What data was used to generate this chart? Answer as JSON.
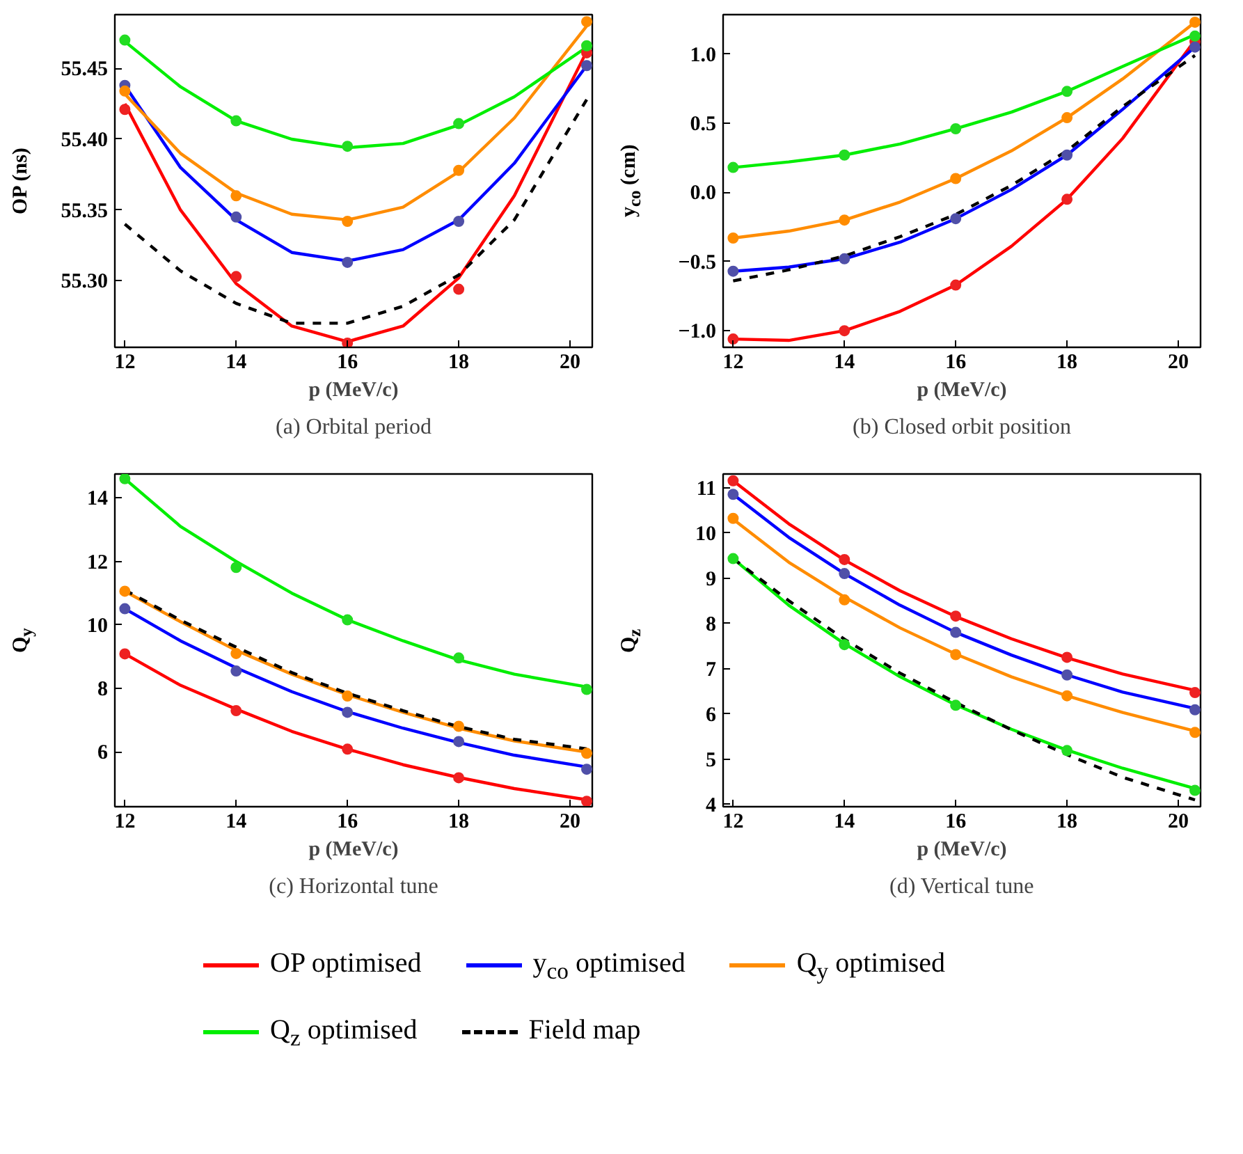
{
  "chart_data": [
    {
      "type": "line",
      "title": "(a) Orbital period",
      "xlabel": "p (MeV/c)",
      "ylabel": "OP (ns)",
      "x": [
        12,
        14,
        16,
        18,
        20.3
      ],
      "xlim": [
        11.82,
        20.4
      ],
      "ylim": [
        55.253,
        55.488
      ],
      "xticks": [
        12,
        14,
        16,
        18,
        20
      ],
      "yticks": [
        {
          "value": 55.3,
          "label": "55.30"
        },
        {
          "value": 55.35,
          "label": "55.35"
        },
        {
          "value": 55.4,
          "label": "55.40"
        },
        {
          "value": 55.45,
          "label": "55.45"
        }
      ],
      "series": [
        {
          "color": "#ff0000",
          "x": [
            12,
            13,
            14,
            15,
            16,
            17,
            18,
            19,
            20.3
          ],
          "values": [
            55.425,
            55.35,
            55.298,
            55.268,
            55.257,
            55.268,
            55.302,
            55.36,
            55.462
          ]
        },
        {
          "color": "#0000ff",
          "x": [
            12,
            13,
            14,
            15,
            16,
            17,
            18,
            19,
            20.3
          ],
          "values": [
            55.438,
            55.38,
            55.343,
            55.32,
            55.314,
            55.322,
            55.343,
            55.383,
            55.452
          ]
        },
        {
          "color": "#ff8c00",
          "x": [
            12,
            13,
            14,
            15,
            16,
            17,
            18,
            19,
            20.3
          ],
          "values": [
            55.432,
            55.39,
            55.362,
            55.347,
            55.343,
            55.352,
            55.377,
            55.415,
            55.48
          ]
        },
        {
          "color": "#00ee00",
          "x": [
            12,
            13,
            14,
            15,
            16,
            17,
            18,
            19,
            20.3
          ],
          "values": [
            55.469,
            55.437,
            55.413,
            55.4,
            55.394,
            55.397,
            55.41,
            55.43,
            55.465
          ]
        },
        {
          "color": "#000000",
          "line_style": "dashed",
          "x": [
            12,
            13,
            14,
            15,
            16,
            17,
            18,
            19,
            20.3
          ],
          "values": [
            55.34,
            55.307,
            55.284,
            55.27,
            55.27,
            55.282,
            55.304,
            55.343,
            55.428
          ]
        },
        {
          "type": "scatter",
          "marker": "circle",
          "color": "#ee2222",
          "values": [
            55.421,
            55.303,
            55.256,
            55.294,
            55.461
          ]
        },
        {
          "type": "scatter",
          "marker": "circle",
          "color": "#5050a8",
          "values": [
            55.438,
            55.345,
            55.313,
            55.342,
            55.452
          ]
        },
        {
          "type": "scatter",
          "marker": "circle",
          "color": "#ff8c00",
          "values": [
            55.434,
            55.36,
            55.342,
            55.378,
            55.483
          ]
        },
        {
          "type": "scatter",
          "marker": "circle",
          "color": "#22dd22",
          "values": [
            55.47,
            55.413,
            55.395,
            55.411,
            55.466
          ]
        }
      ]
    },
    {
      "type": "line",
      "title": "(b) Closed orbit position",
      "xlabel": "p (MeV/c)",
      "ylabel": "y$_{co}$ (cm)",
      "x": [
        12,
        14,
        16,
        18,
        20.3
      ],
      "xlim": [
        11.82,
        20.4
      ],
      "ylim": [
        -1.12,
        1.285
      ],
      "xticks": [
        12,
        14,
        16,
        18,
        20
      ],
      "yticks": [
        {
          "value": -1.0,
          "label": "−1.0"
        },
        {
          "value": -0.5,
          "label": "−0.5"
        },
        {
          "value": 0.0,
          "label": "0.0"
        },
        {
          "value": 0.5,
          "label": "0.5"
        },
        {
          "value": 1.0,
          "label": "1.0"
        }
      ],
      "series": [
        {
          "color": "#ff0000",
          "x": [
            12,
            13,
            14,
            15,
            16,
            17,
            18,
            19,
            20.3
          ],
          "values": [
            -1.06,
            -1.07,
            -1.0,
            -0.86,
            -0.67,
            -0.39,
            -0.05,
            0.39,
            1.1
          ]
        },
        {
          "color": "#0000ff",
          "x": [
            12,
            13,
            14,
            15,
            16,
            17,
            18,
            19,
            20.3
          ],
          "values": [
            -0.57,
            -0.54,
            -0.48,
            -0.36,
            -0.19,
            0.02,
            0.27,
            0.6,
            1.05
          ]
        },
        {
          "color": "#ff8c00",
          "x": [
            12,
            13,
            14,
            15,
            16,
            17,
            18,
            19,
            20.3
          ],
          "values": [
            -0.33,
            -0.28,
            -0.2,
            -0.07,
            0.1,
            0.3,
            0.54,
            0.82,
            1.23
          ]
        },
        {
          "color": "#00ee00",
          "x": [
            12,
            13,
            14,
            15,
            16,
            17,
            18,
            19,
            20.3
          ],
          "values": [
            0.18,
            0.22,
            0.27,
            0.35,
            0.46,
            0.58,
            0.73,
            0.91,
            1.14
          ]
        },
        {
          "color": "#000000",
          "line_style": "dashed",
          "x": [
            12,
            13,
            14,
            15,
            16,
            17,
            18,
            19,
            20.3
          ],
          "values": [
            -0.64,
            -0.56,
            -0.46,
            -0.32,
            -0.16,
            0.05,
            0.3,
            0.62,
            0.99
          ]
        },
        {
          "type": "scatter",
          "marker": "circle",
          "color": "#ee2222",
          "values": [
            -1.06,
            -1.0,
            -0.67,
            -0.05,
            1.09
          ]
        },
        {
          "type": "scatter",
          "marker": "circle",
          "color": "#5050a8",
          "values": [
            -0.57,
            -0.48,
            -0.19,
            0.27,
            1.05
          ]
        },
        {
          "type": "scatter",
          "marker": "circle",
          "color": "#ff8c00",
          "values": [
            -0.33,
            -0.2,
            0.1,
            0.54,
            1.23
          ]
        },
        {
          "type": "scatter",
          "marker": "circle",
          "color": "#22dd22",
          "values": [
            0.18,
            0.27,
            0.46,
            0.73,
            1.13
          ]
        }
      ]
    },
    {
      "type": "line",
      "title": "(c) Horizontal tune",
      "xlabel": "p (MeV/c)",
      "ylabel": "Q$_{y}$",
      "x": [
        12,
        14,
        16,
        18,
        20.3
      ],
      "xlim": [
        11.82,
        20.4
      ],
      "ylim": [
        4.28,
        14.75
      ],
      "xticks": [
        12,
        14,
        16,
        18,
        20
      ],
      "yticks": [
        6,
        8,
        10,
        12,
        14
      ],
      "series": [
        {
          "color": "#ff0000",
          "x": [
            12,
            13,
            14,
            15,
            16,
            17,
            18,
            19,
            20.3
          ],
          "values": [
            9.09,
            8.1,
            7.35,
            6.65,
            6.09,
            5.6,
            5.2,
            4.85,
            4.5
          ]
        },
        {
          "color": "#0000ff",
          "x": [
            12,
            13,
            14,
            15,
            16,
            17,
            18,
            19,
            20.3
          ],
          "values": [
            10.51,
            9.5,
            8.65,
            7.9,
            7.27,
            6.75,
            6.3,
            5.9,
            5.53
          ]
        },
        {
          "color": "#ff8c00",
          "x": [
            12,
            13,
            14,
            15,
            16,
            17,
            18,
            19,
            20.3
          ],
          "values": [
            11.06,
            10.1,
            9.2,
            8.45,
            7.8,
            7.25,
            6.75,
            6.35,
            6.0
          ]
        },
        {
          "color": "#00ee00",
          "x": [
            12,
            13,
            14,
            15,
            16,
            17,
            18,
            19,
            20.3
          ],
          "values": [
            14.6,
            13.1,
            12.0,
            11.0,
            10.16,
            9.5,
            8.9,
            8.45,
            8.05
          ]
        },
        {
          "color": "#000000",
          "line_style": "dashed",
          "x": [
            12,
            13,
            14,
            15,
            16,
            17,
            18,
            19,
            20.3
          ],
          "values": [
            11.1,
            10.15,
            9.3,
            8.5,
            7.85,
            7.3,
            6.8,
            6.4,
            6.1
          ]
        },
        {
          "type": "scatter",
          "marker": "circle",
          "color": "#ee2222",
          "values": [
            9.09,
            7.3,
            6.09,
            5.19,
            4.45
          ]
        },
        {
          "type": "scatter",
          "marker": "circle",
          "color": "#5050a8",
          "values": [
            10.51,
            8.55,
            7.25,
            6.33,
            5.46
          ]
        },
        {
          "type": "scatter",
          "marker": "circle",
          "color": "#ff8c00",
          "values": [
            11.06,
            9.1,
            7.76,
            6.81,
            5.96
          ]
        },
        {
          "type": "scatter",
          "marker": "circle",
          "color": "#22dd22",
          "values": [
            14.6,
            11.81,
            10.16,
            8.96,
            7.97
          ]
        }
      ]
    },
    {
      "type": "line",
      "title": "(d) Vertical tune",
      "xlabel": "p (MeV/c)",
      "ylabel": "Q$_{z}$",
      "x": [
        12,
        14,
        16,
        18,
        20.3
      ],
      "legend": "bottom",
      "xlim": [
        11.82,
        20.4
      ],
      "ylim": [
        3.95,
        11.3
      ],
      "xticks": [
        12,
        14,
        16,
        18,
        20
      ],
      "yticks": [
        4,
        5,
        6,
        7,
        8,
        9,
        10,
        11
      ],
      "series": [
        {
          "name": "OP optimised",
          "color": "#ff0000",
          "x": [
            12,
            13,
            14,
            15,
            16,
            17,
            18,
            19,
            20.3
          ],
          "values": [
            11.15,
            10.2,
            9.4,
            8.72,
            8.15,
            7.66,
            7.24,
            6.88,
            6.52
          ]
        },
        {
          "name": "y$_{co}$ optimised",
          "color": "#0000ff",
          "x": [
            12,
            13,
            14,
            15,
            16,
            17,
            18,
            19,
            20.3
          ],
          "values": [
            10.85,
            9.9,
            9.1,
            8.4,
            7.8,
            7.3,
            6.86,
            6.48,
            6.12
          ]
        },
        {
          "name": "Q$_{y}$ optimised",
          "color": "#ff8c00",
          "x": [
            12,
            13,
            14,
            15,
            16,
            17,
            18,
            19,
            20.3
          ],
          "values": [
            10.3,
            9.35,
            8.58,
            7.9,
            7.32,
            6.82,
            6.4,
            6.03,
            5.62
          ]
        },
        {
          "name": "Q$_{z}$ optimised",
          "color": "#00ee00",
          "x": [
            12,
            13,
            14,
            15,
            16,
            17,
            18,
            19,
            20.3
          ],
          "values": [
            9.43,
            8.4,
            7.55,
            6.82,
            6.2,
            5.66,
            5.2,
            4.8,
            4.35
          ]
        },
        {
          "name": "Field map",
          "color": "#000000",
          "line_style": "dashed",
          "x": [
            12,
            13,
            14,
            15,
            16,
            17,
            18,
            19,
            20.3
          ],
          "values": [
            9.43,
            8.5,
            7.65,
            6.9,
            6.25,
            5.65,
            5.1,
            4.6,
            4.1
          ]
        },
        {
          "type": "scatter",
          "marker": "circle",
          "color": "#ee2222",
          "values": [
            11.15,
            9.41,
            8.16,
            7.25,
            6.47
          ]
        },
        {
          "type": "scatter",
          "marker": "circle",
          "color": "#5050a8",
          "values": [
            10.85,
            9.1,
            7.8,
            6.86,
            6.09
          ]
        },
        {
          "type": "scatter",
          "marker": "circle",
          "color": "#ff8c00",
          "values": [
            10.32,
            8.52,
            7.31,
            6.4,
            5.59
          ]
        },
        {
          "type": "scatter",
          "marker": "circle",
          "color": "#22dd22",
          "values": [
            9.43,
            7.53,
            6.19,
            5.19,
            4.31
          ]
        }
      ]
    }
  ]
}
